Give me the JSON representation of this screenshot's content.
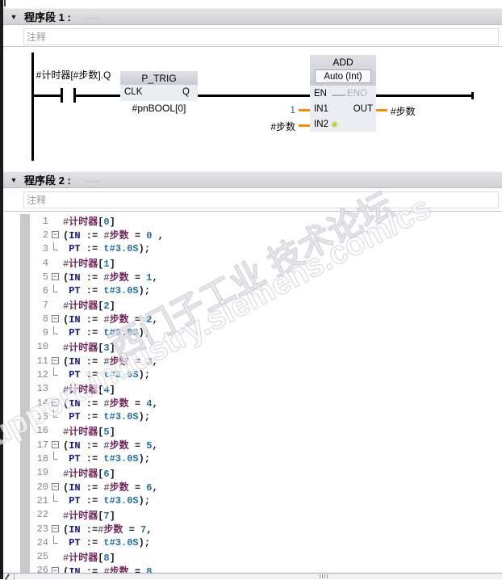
{
  "colors": {
    "accent_orange": "#ee9000",
    "keyword_blue": "#191a85",
    "variable_plum": "#722b5e",
    "number_teal": "#266e9c",
    "star_yellow_green": "#becf00"
  },
  "icons": {
    "collapse": "▼",
    "star": "✳",
    "fold_minus": "−"
  },
  "networks": [
    {
      "title": "程序段 1 :",
      "dots": ".....",
      "comment": "注释"
    },
    {
      "title": "程序段 2 :",
      "dots": ".....",
      "comment": "注释"
    }
  ],
  "ladder": {
    "contact_label": "#计时器[#步数].Q",
    "ptrig": {
      "title": "P_TRIG",
      "clk": "CLK",
      "q": "Q",
      "operand": "#pnBOOL[0]"
    },
    "add": {
      "title": "ADD",
      "mode": "Auto (Int)",
      "en": "EN",
      "eno": "ENO",
      "in1": "IN1",
      "in2": "IN2",
      "out": "OUT",
      "in1_value": "1",
      "in2_operand": "#步数",
      "out_operand": "#步数"
    }
  },
  "code": {
    "lines": [
      {
        "n": "1",
        "fold": "none",
        "tokens": [
          [
            "h",
            "#"
          ],
          [
            "v",
            "计时器"
          ],
          [
            "p",
            "["
          ],
          [
            "n",
            "0"
          ],
          [
            "p",
            "]"
          ]
        ]
      },
      {
        "n": "2",
        "fold": "start",
        "tokens": [
          [
            "p",
            "("
          ],
          [
            "k",
            "IN"
          ],
          [
            "p",
            " := "
          ],
          [
            "h",
            "#"
          ],
          [
            "v",
            "步数"
          ],
          [
            "p",
            " = "
          ],
          [
            "n",
            "0"
          ],
          [
            "p",
            " ,"
          ]
        ]
      },
      {
        "n": "3",
        "fold": "cont",
        "tokens": [
          [
            "p",
            " "
          ],
          [
            "k",
            "PT"
          ],
          [
            "p",
            " := "
          ],
          [
            "n",
            "t#3.0S"
          ],
          [
            "p",
            ");"
          ]
        ]
      },
      {
        "n": "4",
        "fold": "none",
        "tokens": [
          [
            "h",
            "#"
          ],
          [
            "v",
            "计时器"
          ],
          [
            "p",
            "["
          ],
          [
            "n",
            "1"
          ],
          [
            "p",
            "]"
          ]
        ]
      },
      {
        "n": "5",
        "fold": "start",
        "tokens": [
          [
            "p",
            "("
          ],
          [
            "k",
            "IN"
          ],
          [
            "p",
            " := "
          ],
          [
            "h",
            "#"
          ],
          [
            "v",
            "步数"
          ],
          [
            "p",
            " = "
          ],
          [
            "n",
            "1"
          ],
          [
            "p",
            ","
          ]
        ]
      },
      {
        "n": "6",
        "fold": "cont",
        "tokens": [
          [
            "p",
            " "
          ],
          [
            "k",
            "PT"
          ],
          [
            "p",
            " := "
          ],
          [
            "n",
            "t#3.0S"
          ],
          [
            "p",
            ");"
          ]
        ]
      },
      {
        "n": "7",
        "fold": "none",
        "tokens": [
          [
            "h",
            "#"
          ],
          [
            "v",
            "计时器"
          ],
          [
            "p",
            "["
          ],
          [
            "n",
            "2"
          ],
          [
            "p",
            "]"
          ]
        ]
      },
      {
        "n": "8",
        "fold": "start",
        "tokens": [
          [
            "p",
            "("
          ],
          [
            "k",
            "IN"
          ],
          [
            "p",
            " := "
          ],
          [
            "h",
            "#"
          ],
          [
            "v",
            "步数"
          ],
          [
            "p",
            " = "
          ],
          [
            "n",
            "2"
          ],
          [
            "p",
            ","
          ]
        ]
      },
      {
        "n": "9",
        "fold": "cont",
        "tokens": [
          [
            "p",
            " "
          ],
          [
            "k",
            "PT"
          ],
          [
            "p",
            " := "
          ],
          [
            "n",
            "t#3.0S"
          ],
          [
            "p",
            ");"
          ]
        ]
      },
      {
        "n": "10",
        "fold": "none",
        "tokens": [
          [
            "h",
            "#"
          ],
          [
            "v",
            "计时器"
          ],
          [
            "p",
            "["
          ],
          [
            "n",
            "3"
          ],
          [
            "p",
            "]"
          ]
        ]
      },
      {
        "n": "11",
        "fold": "start",
        "tokens": [
          [
            "p",
            "("
          ],
          [
            "k",
            "IN"
          ],
          [
            "p",
            " := "
          ],
          [
            "h",
            "#"
          ],
          [
            "v",
            "步数"
          ],
          [
            "p",
            " = "
          ],
          [
            "n",
            "3"
          ],
          [
            "p",
            ","
          ]
        ]
      },
      {
        "n": "12",
        "fold": "cont",
        "tokens": [
          [
            "p",
            " "
          ],
          [
            "k",
            "PT"
          ],
          [
            "p",
            " := "
          ],
          [
            "n",
            "t#3.0S"
          ],
          [
            "p",
            ");"
          ]
        ]
      },
      {
        "n": "13",
        "fold": "none",
        "tokens": [
          [
            "h",
            "#"
          ],
          [
            "v",
            "计时器"
          ],
          [
            "p",
            "["
          ],
          [
            "n",
            "4"
          ],
          [
            "p",
            "]"
          ]
        ]
      },
      {
        "n": "14",
        "fold": "start",
        "tokens": [
          [
            "p",
            "("
          ],
          [
            "k",
            "IN"
          ],
          [
            "p",
            " := "
          ],
          [
            "h",
            "#"
          ],
          [
            "v",
            "步数"
          ],
          [
            "p",
            " = "
          ],
          [
            "n",
            "4"
          ],
          [
            "p",
            ","
          ]
        ]
      },
      {
        "n": "15",
        "fold": "cont",
        "tokens": [
          [
            "p",
            " "
          ],
          [
            "k",
            "PT"
          ],
          [
            "p",
            " := "
          ],
          [
            "n",
            "t#3.0S"
          ],
          [
            "p",
            ");"
          ]
        ]
      },
      {
        "n": "16",
        "fold": "none",
        "tokens": [
          [
            "h",
            "#"
          ],
          [
            "v",
            "计时器"
          ],
          [
            "p",
            "["
          ],
          [
            "n",
            "5"
          ],
          [
            "p",
            "]"
          ]
        ]
      },
      {
        "n": "17",
        "fold": "start",
        "tokens": [
          [
            "p",
            "("
          ],
          [
            "k",
            "IN"
          ],
          [
            "p",
            " := "
          ],
          [
            "h",
            "#"
          ],
          [
            "v",
            "步数"
          ],
          [
            "p",
            " = "
          ],
          [
            "n",
            "5"
          ],
          [
            "p",
            ","
          ]
        ]
      },
      {
        "n": "18",
        "fold": "cont",
        "tokens": [
          [
            "p",
            " "
          ],
          [
            "k",
            "PT"
          ],
          [
            "p",
            " := "
          ],
          [
            "n",
            "t#3.0S"
          ],
          [
            "p",
            ");"
          ]
        ]
      },
      {
        "n": "19",
        "fold": "none",
        "tokens": [
          [
            "h",
            "#"
          ],
          [
            "v",
            "计时器"
          ],
          [
            "p",
            "["
          ],
          [
            "n",
            "6"
          ],
          [
            "p",
            "]"
          ]
        ]
      },
      {
        "n": "20",
        "fold": "start",
        "tokens": [
          [
            "p",
            "("
          ],
          [
            "k",
            "IN"
          ],
          [
            "p",
            " := "
          ],
          [
            "h",
            "#"
          ],
          [
            "v",
            "步数"
          ],
          [
            "p",
            " = "
          ],
          [
            "n",
            "6"
          ],
          [
            "p",
            ","
          ]
        ]
      },
      {
        "n": "21",
        "fold": "cont",
        "tokens": [
          [
            "p",
            " "
          ],
          [
            "k",
            "PT"
          ],
          [
            "p",
            " := "
          ],
          [
            "n",
            "t#3.0S"
          ],
          [
            "p",
            ");"
          ]
        ]
      },
      {
        "n": "22",
        "fold": "none",
        "tokens": [
          [
            "h",
            "#"
          ],
          [
            "v",
            "计时器"
          ],
          [
            "p",
            "["
          ],
          [
            "n",
            "7"
          ],
          [
            "p",
            "]"
          ]
        ]
      },
      {
        "n": "23",
        "fold": "start",
        "tokens": [
          [
            "p",
            "("
          ],
          [
            "k",
            "IN"
          ],
          [
            "p",
            " :="
          ],
          [
            "h",
            "#"
          ],
          [
            "v",
            "步数"
          ],
          [
            "p",
            " = "
          ],
          [
            "n",
            "7"
          ],
          [
            "p",
            ","
          ]
        ]
      },
      {
        "n": "24",
        "fold": "cont",
        "tokens": [
          [
            "p",
            " "
          ],
          [
            "k",
            "PT"
          ],
          [
            "p",
            " := "
          ],
          [
            "n",
            "t#3.0S"
          ],
          [
            "p",
            ");"
          ]
        ]
      },
      {
        "n": "25",
        "fold": "none",
        "tokens": [
          [
            "h",
            "#"
          ],
          [
            "v",
            "计时器"
          ],
          [
            "p",
            "["
          ],
          [
            "n",
            "8"
          ],
          [
            "p",
            "]"
          ]
        ]
      },
      {
        "n": "26",
        "fold": "start",
        "tokens": [
          [
            "p",
            "("
          ],
          [
            "k",
            "IN"
          ],
          [
            "p",
            " := "
          ],
          [
            "h",
            "#"
          ],
          [
            "v",
            "步数"
          ],
          [
            "p",
            " = "
          ],
          [
            "n",
            "8"
          ],
          [
            "p",
            ","
          ]
        ]
      }
    ]
  },
  "watermark": {
    "line1": "西门子工业 技术论坛",
    "line2": "support.industry.siemens.com/cs"
  }
}
